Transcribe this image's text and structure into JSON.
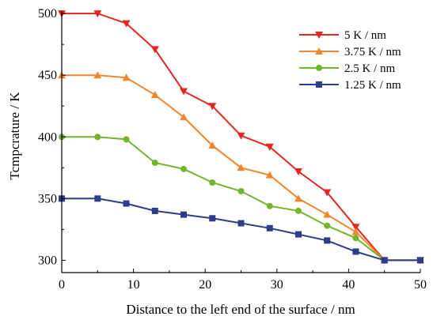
{
  "chart_data": {
    "type": "line",
    "xlabel": "Distance to the left end of the surface / nm",
    "ylabel": "Tcmpcrature / K",
    "xlim": [
      0,
      50
    ],
    "ylim": [
      290,
      502
    ],
    "xticks": [
      0,
      10,
      20,
      30,
      40,
      50
    ],
    "yticks": [
      300,
      350,
      400,
      450,
      500
    ],
    "x": [
      0,
      5,
      9,
      13,
      17,
      21,
      25,
      29,
      33,
      37,
      41,
      45,
      50
    ],
    "grid": false,
    "legend_position": "top-right",
    "series": [
      {
        "name": "5 K / nm",
        "color": "#e3271f",
        "marker": "triangle-down",
        "values": [
          500,
          500,
          492,
          471,
          437,
          425,
          401,
          392,
          372,
          355,
          327,
          300,
          300
        ]
      },
      {
        "name": "3.75 K / nm",
        "color": "#f2862e",
        "marker": "triangle-up",
        "values": [
          450,
          450,
          448,
          434,
          416,
          393,
          375,
          369,
          350,
          337,
          323,
          300,
          300
        ]
      },
      {
        "name": "2.5 K / nm",
        "color": "#70b52b",
        "marker": "circle",
        "values": [
          400,
          400,
          398,
          379,
          374,
          363,
          356,
          344,
          340,
          328,
          318,
          300,
          300
        ]
      },
      {
        "name": "1.25 K / nm",
        "color": "#2e3c8c",
        "marker": "square",
        "values": [
          350,
          350,
          346,
          340,
          337,
          334,
          330,
          326,
          321,
          316,
          307,
          300,
          300
        ]
      }
    ]
  }
}
